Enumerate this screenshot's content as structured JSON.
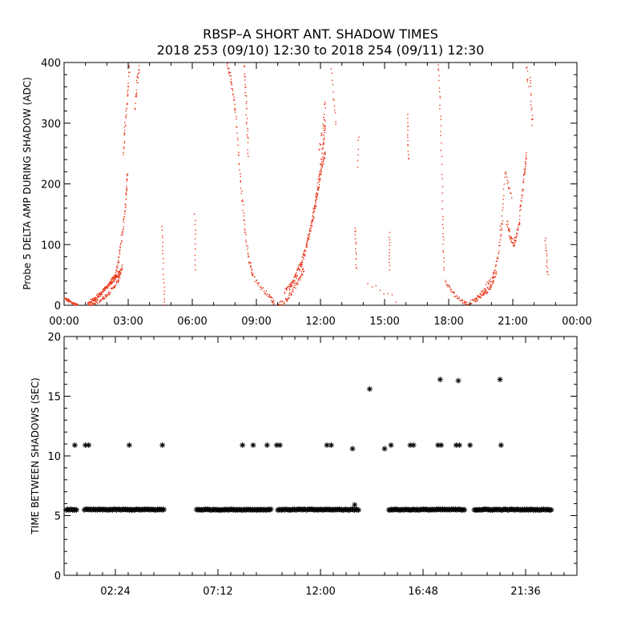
{
  "title": "RBSP–A SHORT ANT. SHADOW TIMES",
  "subtitle": "2018 253 (09/10) 12:30 to 2018 254 (09/11) 12:30",
  "colors": {
    "red": "#e8381c",
    "black": "#000000",
    "background": "#ffffff"
  },
  "chart_data": [
    {
      "type": "scatter",
      "name": "top",
      "ylabel": "Probe 5 DELTA AMP DURING SHADOW (ADC)",
      "xlabel": "",
      "xlim": [
        0,
        24
      ],
      "ylim": [
        0,
        400
      ],
      "xticks": [
        0,
        3,
        6,
        9,
        12,
        15,
        18,
        21,
        24
      ],
      "xtick_labels": [
        "00:00",
        "03:00",
        "06:00",
        "09:00",
        "12:00",
        "15:00",
        "18:00",
        "21:00",
        "00:00"
      ],
      "yticks": [
        0,
        100,
        200,
        300,
        400
      ],
      "ytick_labels": [
        "0",
        "100",
        "200",
        "300",
        "400"
      ],
      "marker": "dot",
      "color": "#e8381c",
      "curves": [
        {
          "pts": [
            [
              0.0,
              12
            ],
            [
              0.2,
              8
            ],
            [
              0.4,
              4
            ],
            [
              0.6,
              1
            ]
          ],
          "n": 50,
          "spread": 5
        },
        {
          "pts": [
            [
              1.1,
              2
            ],
            [
              1.5,
              12
            ],
            [
              1.9,
              28
            ],
            [
              2.2,
              42
            ],
            [
              2.4,
              50
            ]
          ],
          "n": 80,
          "spread": 6
        },
        {
          "pts": [
            [
              1.1,
              5
            ],
            [
              1.6,
              18
            ],
            [
              2.0,
              32
            ],
            [
              2.4,
              45
            ],
            [
              2.6,
              58
            ]
          ],
          "n": 80,
          "spread": 6
        },
        {
          "pts": [
            [
              1.2,
              0
            ],
            [
              1.7,
              10
            ],
            [
              2.1,
              22
            ],
            [
              2.5,
              40
            ],
            [
              2.7,
              65
            ]
          ],
          "n": 80,
          "spread": 6
        },
        {
          "pts": [
            [
              2.3,
              40
            ],
            [
              2.5,
              70
            ],
            [
              2.7,
              120
            ],
            [
              2.85,
              170
            ],
            [
              2.95,
              220
            ]
          ],
          "n": 70,
          "spread": 10
        },
        {
          "pts": [
            [
              2.75,
              250
            ],
            [
              2.85,
              300
            ],
            [
              2.95,
              350
            ],
            [
              3.05,
              400
            ]
          ],
          "n": 40,
          "spread": 15
        },
        {
          "pts": [
            [
              3.3,
              330
            ],
            [
              3.4,
              370
            ],
            [
              3.5,
              400
            ]
          ],
          "n": 25,
          "spread": 20
        },
        {
          "pts": [
            [
              4.55,
              130
            ],
            [
              4.6,
              90
            ],
            [
              4.65,
              40
            ],
            [
              4.7,
              0
            ]
          ],
          "n": 20,
          "spread": 4
        },
        {
          "pts": [
            [
              6.1,
              150
            ],
            [
              6.1,
              60
            ]
          ],
          "n": 12,
          "spread": 3
        },
        {
          "pts": [
            [
              7.6,
              400
            ],
            [
              7.8,
              370
            ],
            [
              8.0,
              320
            ],
            [
              8.2,
              220
            ],
            [
              8.4,
              140
            ],
            [
              8.6,
              80
            ],
            [
              8.8,
              50
            ]
          ],
          "n": 90,
          "spread": 10
        },
        {
          "pts": [
            [
              8.4,
              400
            ],
            [
              8.5,
              330
            ],
            [
              8.6,
              250
            ]
          ],
          "n": 30,
          "spread": 10
        },
        {
          "pts": [
            [
              8.8,
              50
            ],
            [
              9.2,
              30
            ],
            [
              9.6,
              15
            ],
            [
              9.8,
              5
            ]
          ],
          "n": 40,
          "spread": 8
        },
        {
          "pts": [
            [
              10.0,
              2
            ],
            [
              10.4,
              10
            ],
            [
              10.7,
              25
            ],
            [
              11.0,
              45
            ],
            [
              11.2,
              60
            ]
          ],
          "n": 60,
          "spread": 8
        },
        {
          "pts": [
            [
              10.3,
              20
            ],
            [
              10.7,
              40
            ],
            [
              11.1,
              70
            ],
            [
              11.4,
              110
            ],
            [
              11.7,
              160
            ],
            [
              11.9,
              210
            ],
            [
              12.1,
              260
            ],
            [
              12.2,
              300
            ]
          ],
          "n": 120,
          "spread": 12
        },
        {
          "pts": [
            [
              10.5,
              25
            ],
            [
              10.9,
              55
            ],
            [
              11.3,
              95
            ],
            [
              11.6,
              140
            ],
            [
              11.8,
              180
            ],
            [
              12.0,
              220
            ],
            [
              12.2,
              255
            ]
          ],
          "n": 120,
          "spread": 12
        },
        {
          "pts": [
            [
              11.9,
              250
            ],
            [
              12.1,
              300
            ],
            [
              12.2,
              340
            ]
          ],
          "n": 20,
          "spread": 20
        },
        {
          "pts": [
            [
              12.5,
              390
            ],
            [
              12.6,
              340
            ],
            [
              12.7,
              300
            ]
          ],
          "n": 12,
          "spread": 10
        },
        {
          "pts": [
            [
              13.6,
              130
            ],
            [
              13.65,
              60
            ]
          ],
          "n": 15,
          "spread": 5
        },
        {
          "pts": [
            [
              13.7,
              230
            ],
            [
              13.75,
              280
            ]
          ],
          "n": 6,
          "spread": 5
        },
        {
          "pts": [
            [
              14.2,
              40
            ],
            [
              15.5,
              10
            ]
          ],
          "n": 8,
          "spread": 10
        },
        {
          "pts": [
            [
              15.2,
              120
            ],
            [
              15.2,
              60
            ]
          ],
          "n": 12,
          "spread": 3
        },
        {
          "pts": [
            [
              16.05,
              315
            ],
            [
              16.1,
              240
            ]
          ],
          "n": 15,
          "spread": 6
        },
        {
          "pts": [
            [
              17.5,
              400
            ],
            [
              17.6,
              300
            ],
            [
              17.7,
              150
            ],
            [
              17.75,
              60
            ]
          ],
          "n": 40,
          "spread": 8
        },
        {
          "pts": [
            [
              17.8,
              40
            ],
            [
              18.2,
              20
            ],
            [
              18.6,
              8
            ],
            [
              18.9,
              2
            ]
          ],
          "n": 40,
          "spread": 6
        },
        {
          "pts": [
            [
              19.0,
              5
            ],
            [
              19.5,
              15
            ],
            [
              19.9,
              30
            ],
            [
              20.2,
              55
            ]
          ],
          "n": 60,
          "spread": 8
        },
        {
          "pts": [
            [
              19.2,
              8
            ],
            [
              19.6,
              25
            ],
            [
              20.0,
              45
            ],
            [
              20.3,
              80
            ],
            [
              20.5,
              140
            ]
          ],
          "n": 60,
          "spread": 8
        },
        {
          "pts": [
            [
              20.4,
              120
            ],
            [
              20.6,
              220
            ],
            [
              20.9,
              180
            ]
          ],
          "n": 25,
          "spread": 10
        },
        {
          "pts": [
            [
              20.7,
              140
            ],
            [
              20.85,
              115
            ],
            [
              21.0,
              100
            ],
            [
              21.15,
              115
            ],
            [
              21.3,
              140
            ]
          ],
          "n": 60,
          "spread": 12
        },
        {
          "pts": [
            [
              21.3,
              150
            ],
            [
              21.5,
              210
            ],
            [
              21.6,
              250
            ]
          ],
          "n": 40,
          "spread": 10
        },
        {
          "pts": [
            [
              21.8,
              380
            ],
            [
              21.85,
              330
            ],
            [
              21.9,
              300
            ]
          ],
          "n": 15,
          "spread": 12
        },
        {
          "pts": [
            [
              21.6,
              400
            ],
            [
              21.7,
              360
            ]
          ],
          "n": 8,
          "spread": 10
        },
        {
          "pts": [
            [
              22.5,
              110
            ],
            [
              22.55,
              80
            ],
            [
              22.6,
              50
            ]
          ],
          "n": 15,
          "spread": 5
        }
      ]
    },
    {
      "type": "scatter",
      "name": "bottom",
      "ylabel": "TIME BETWEEN SHADOWS (SEC)",
      "xlabel": "",
      "xlim": [
        0,
        24
      ],
      "ylim": [
        0,
        20
      ],
      "xticks": [
        2.4,
        7.2,
        12.0,
        16.8,
        21.6
      ],
      "xtick_labels": [
        "02:24",
        "07:12",
        "12:00",
        "16:48",
        "21:36"
      ],
      "yticks": [
        0,
        5,
        10,
        15,
        20
      ],
      "ytick_labels": [
        "0",
        "5",
        "10",
        "15",
        "20"
      ],
      "marker": "asterisk",
      "color": "#000000",
      "baseline": 5.5,
      "runs": [
        [
          0.1,
          0.6
        ],
        [
          0.95,
          4.7
        ],
        [
          6.2,
          9.7
        ],
        [
          10.0,
          13.8
        ],
        [
          15.2,
          18.75
        ],
        [
          19.2,
          22.8
        ]
      ],
      "points": [
        [
          0.5,
          10.9
        ],
        [
          1.0,
          10.9
        ],
        [
          1.15,
          10.9
        ],
        [
          3.05,
          10.9
        ],
        [
          4.6,
          10.9
        ],
        [
          8.35,
          10.9
        ],
        [
          8.85,
          10.9
        ],
        [
          9.5,
          10.9
        ],
        [
          9.95,
          10.9
        ],
        [
          10.1,
          10.9
        ],
        [
          12.3,
          10.9
        ],
        [
          12.5,
          10.9
        ],
        [
          13.5,
          10.6
        ],
        [
          13.6,
          5.9
        ],
        [
          14.3,
          15.6
        ],
        [
          15.0,
          10.6
        ],
        [
          15.3,
          10.9
        ],
        [
          16.2,
          10.9
        ],
        [
          16.35,
          10.9
        ],
        [
          17.5,
          10.9
        ],
        [
          17.65,
          10.9
        ],
        [
          17.6,
          16.4
        ],
        [
          18.35,
          10.9
        ],
        [
          18.5,
          10.9
        ],
        [
          18.45,
          16.3
        ],
        [
          19.0,
          10.9
        ],
        [
          20.4,
          16.4
        ],
        [
          20.45,
          10.9
        ]
      ]
    }
  ]
}
